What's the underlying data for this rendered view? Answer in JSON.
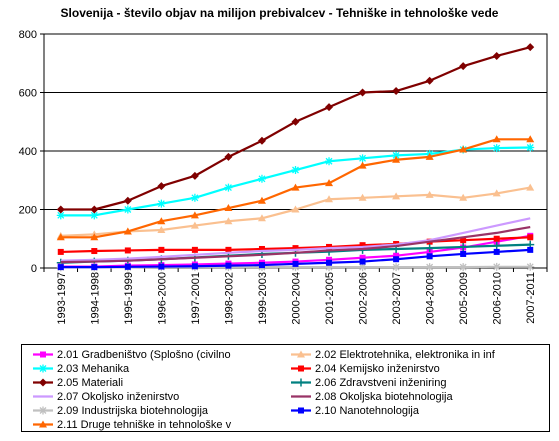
{
  "chart_data": {
    "type": "line",
    "title": "Slovenija - število objav na milijon prebivalcev - Tehniške in tehnološke vede",
    "xlabel": "",
    "ylabel": "",
    "ylim": [
      0,
      800
    ],
    "yticks": [
      0,
      200,
      400,
      600,
      800
    ],
    "grid": "horizontal",
    "legend_position": "bottom",
    "categories": [
      "1993-1997",
      "1994-1998",
      "1995-1999",
      "1996-2000",
      "1997-2001",
      "1998-2002",
      "1999-2003",
      "2000-2004",
      "2001-2005",
      "2002-2006",
      "2003-2007",
      "2004-2008",
      "2005-2009",
      "2006-2010",
      "2007-2011"
    ],
    "series": [
      {
        "name": "2.01 Gradbeništvo (Splošno (civilno",
        "color": "#ff00ff",
        "marker": "square",
        "values": [
          5,
          5,
          8,
          10,
          12,
          15,
          18,
          22,
          28,
          35,
          42,
          55,
          70,
          90,
          110
        ]
      },
      {
        "name": "2.02 Elektrotehnika, elektronika in inf",
        "color": "#fac090",
        "marker": "triangle",
        "values": [
          110,
          115,
          125,
          130,
          145,
          160,
          170,
          200,
          235,
          240,
          245,
          250,
          240,
          255,
          275
        ]
      },
      {
        "name": "2.03 Mehanika",
        "color": "#00ffff",
        "marker": "star",
        "values": [
          180,
          180,
          200,
          220,
          240,
          275,
          305,
          335,
          365,
          375,
          385,
          390,
          405,
          410,
          412
        ]
      },
      {
        "name": "2.04 Kemijsko inženirstvo",
        "color": "#ff0000",
        "marker": "square",
        "values": [
          55,
          58,
          60,
          62,
          62,
          62,
          65,
          68,
          72,
          78,
          82,
          90,
          95,
          100,
          105
        ]
      },
      {
        "name": "2.05 Materiali",
        "color": "#800000",
        "marker": "diamond",
        "values": [
          200,
          200,
          230,
          280,
          315,
          380,
          435,
          500,
          550,
          600,
          605,
          640,
          690,
          725,
          755
        ]
      },
      {
        "name": "2.06 Zdravstveni inženiring",
        "color": "#008080",
        "marker": "cross",
        "values": [
          18,
          22,
          25,
          30,
          36,
          42,
          48,
          52,
          56,
          62,
          65,
          68,
          72,
          76,
          80
        ]
      },
      {
        "name": "2.07 Okoljsko inženirstvo",
        "color": "#cc99ff",
        "marker": "none",
        "values": [
          25,
          28,
          32,
          38,
          45,
          52,
          58,
          62,
          68,
          72,
          80,
          95,
          120,
          145,
          170
        ]
      },
      {
        "name": "2.08 Okoljska biotehnologija",
        "color": "#993366",
        "marker": "none",
        "values": [
          20,
          22,
          25,
          30,
          35,
          40,
          45,
          52,
          60,
          65,
          75,
          90,
          105,
          120,
          140
        ]
      },
      {
        "name": "2.09 Industrijska biotehnologija",
        "color": "#c0c0c0",
        "marker": "star",
        "values": [
          2,
          2,
          2,
          3,
          3,
          3,
          3,
          3,
          3,
          3,
          3,
          3,
          3,
          4,
          4
        ]
      },
      {
        "name": "2.10 Nanotehnologija",
        "color": "#0000ff",
        "marker": "square",
        "values": [
          3,
          3,
          4,
          5,
          6,
          8,
          10,
          14,
          18,
          22,
          30,
          40,
          48,
          55,
          62
        ]
      },
      {
        "name": "2.11 Druge tehniške in tehnološke v",
        "color": "#ff6600",
        "marker": "triangle",
        "values": [
          105,
          105,
          125,
          160,
          180,
          205,
          230,
          275,
          290,
          350,
          370,
          380,
          405,
          440,
          440
        ]
      }
    ]
  }
}
